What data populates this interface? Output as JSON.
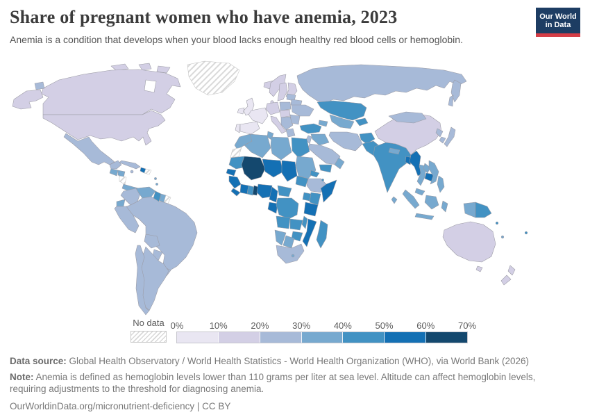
{
  "header": {
    "title": "Share of pregnant women who have anemia, 2023",
    "subtitle": "Anemia is a condition that develops when your blood lacks enough healthy red blood cells or hemoglobin.",
    "logo": {
      "line1": "Our World",
      "line2": "in Data",
      "bg": "#1d3d63",
      "accent": "#d43d46"
    }
  },
  "chart_data": {
    "type": "choropleth-world-map",
    "metric": "Share of pregnant women who have anemia",
    "year": "2023",
    "unit": "%",
    "legend_position": "bottom",
    "no_data": {
      "label": "No data",
      "pattern": "diagonal-hatch"
    },
    "bins": [
      {
        "range": "0-10%",
        "color": "#e9e6f2"
      },
      {
        "range": "10-20%",
        "color": "#d3cfe5"
      },
      {
        "range": "20-30%",
        "color": "#a7bad8"
      },
      {
        "range": "30-40%",
        "color": "#77a9cf"
      },
      {
        "range": "40-50%",
        "color": "#4292c3"
      },
      {
        "range": "50-60%",
        "color": "#1470b4"
      },
      {
        "range": "60-70%",
        "color": "#14486e"
      }
    ],
    "tick_labels": [
      "0%",
      "10%",
      "20%",
      "30%",
      "40%",
      "50%",
      "60%",
      "70%"
    ],
    "regions": {
      "greenland": "no_data",
      "western-sahara": "no_data",
      "nicaragua": "no_data",
      "dominican-republic": "no_data",
      "french-guiana": "no_data",
      "ireland": 0,
      "united-kingdom": 0,
      "france": 0,
      "spain": 0,
      "portugal": 0,
      "iceland": 1,
      "canada": 1,
      "arctic-islands-1": 1,
      "arctic-islands-2": 1,
      "arctic-islands-3": 1,
      "usa": 1,
      "alaska": 1,
      "norway": 1,
      "sweden": 1,
      "finland": 1,
      "denmark": 1,
      "germany-central-europe": 1,
      "italy": 1,
      "czech-hungary": 1,
      "australia": 1,
      "tasmania": 1,
      "new-zealand-north": 1,
      "new-zealand-south": 1,
      "china": 1,
      "chukotka": 2,
      "mexico": 2,
      "yucatan": 2,
      "cuba": 2,
      "jamaica": 2,
      "colombia": 2,
      "peru": 2,
      "brazil": 2,
      "bolivia": 2,
      "paraguay": 2,
      "uruguay": 2,
      "argentina": 2,
      "chile": 2,
      "poland": 2,
      "baltics": 2,
      "belarus": 2,
      "ukraine": 2,
      "romania-bulgaria": 2,
      "balkans": 2,
      "greece": 2,
      "russia": 2,
      "kamchatka": 2,
      "sakhalin": 2,
      "mongolia": 2,
      "north-korea": 2,
      "south-korea": 2,
      "japan": 2,
      "iran": 2,
      "saudi-arabia": 2,
      "jordan-israel": 2,
      "ethiopia": 2,
      "south-africa": 2,
      "guatemala": 3,
      "honduras": 3,
      "costa-rica-panama": 3,
      "venezuela": 3,
      "suriname": 3,
      "ecuador": 3,
      "antilles-1": 3,
      "antilles-2": 3,
      "uzbekistan-turkmenistan": 3,
      "caucasus": 3,
      "syria-iraq": 3,
      "oman": 3,
      "nepal": 3,
      "sri-lanka": 3,
      "thailand": 3,
      "laos": 3,
      "vietnam": 3,
      "malaysia": 3,
      "sumatra": 3,
      "borneo": 3,
      "java": 3,
      "sulawesi": 3,
      "philippines": 3,
      "papua-indonesia": 3,
      "morocco": 3,
      "algeria": 3,
      "tunisia": 3,
      "libya": 3,
      "sudan": 3,
      "botswana": 3,
      "namibia": 3,
      "lesotho": 3,
      "vanuatu": 3,
      "guyana": 4,
      "kazakhstan": 4,
      "kyrgyzstan-tajikistan": 4,
      "turkey": 4,
      "yemen": 4,
      "afghanistan": 4,
      "pakistan": 4,
      "india": 4,
      "egypt": 4,
      "mauritania": 4,
      "ghana": 4,
      "central-african-republic": 4,
      "south-sudan": 4,
      "eritrea": 4,
      "djibouti": 4,
      "kenya": 4,
      "uganda": 4,
      "drc": 4,
      "angola": 4,
      "zambia": 4,
      "malawi": 4,
      "zimbabwe": 4,
      "madagascar": 4,
      "papua-new-guinea": 4,
      "solomon-islands": 4,
      "fiji": 4,
      "haiti": 5,
      "bangladesh": 5,
      "myanmar": 5,
      "cambodia": 5,
      "niger": 5,
      "chad": 5,
      "senegal": 5,
      "guinea": 5,
      "sierra-leone-liberia": 5,
      "cote-divoire": 5,
      "nigeria": 5,
      "cameroon": 5,
      "gabon-congo": 5,
      "somalia": 5,
      "tanzania": 5,
      "mozambique": 5,
      "mali": 6,
      "benin-togo": 6
    }
  },
  "footer": {
    "source_label": "Data source:",
    "source_text": " Global Health Observatory / World Health Statistics - World Health Organization (WHO), via World Bank (2026)",
    "note_label": "Note:",
    "note_text": " Anemia is defined as hemoglobin levels lower than 110 grams per liter at sea level. Altitude can affect hemoglobin levels, requiring adjustments to the threshold for diagnosing anemia.",
    "permalink": "OurWorldinData.org/micronutrient-deficiency | CC BY"
  }
}
